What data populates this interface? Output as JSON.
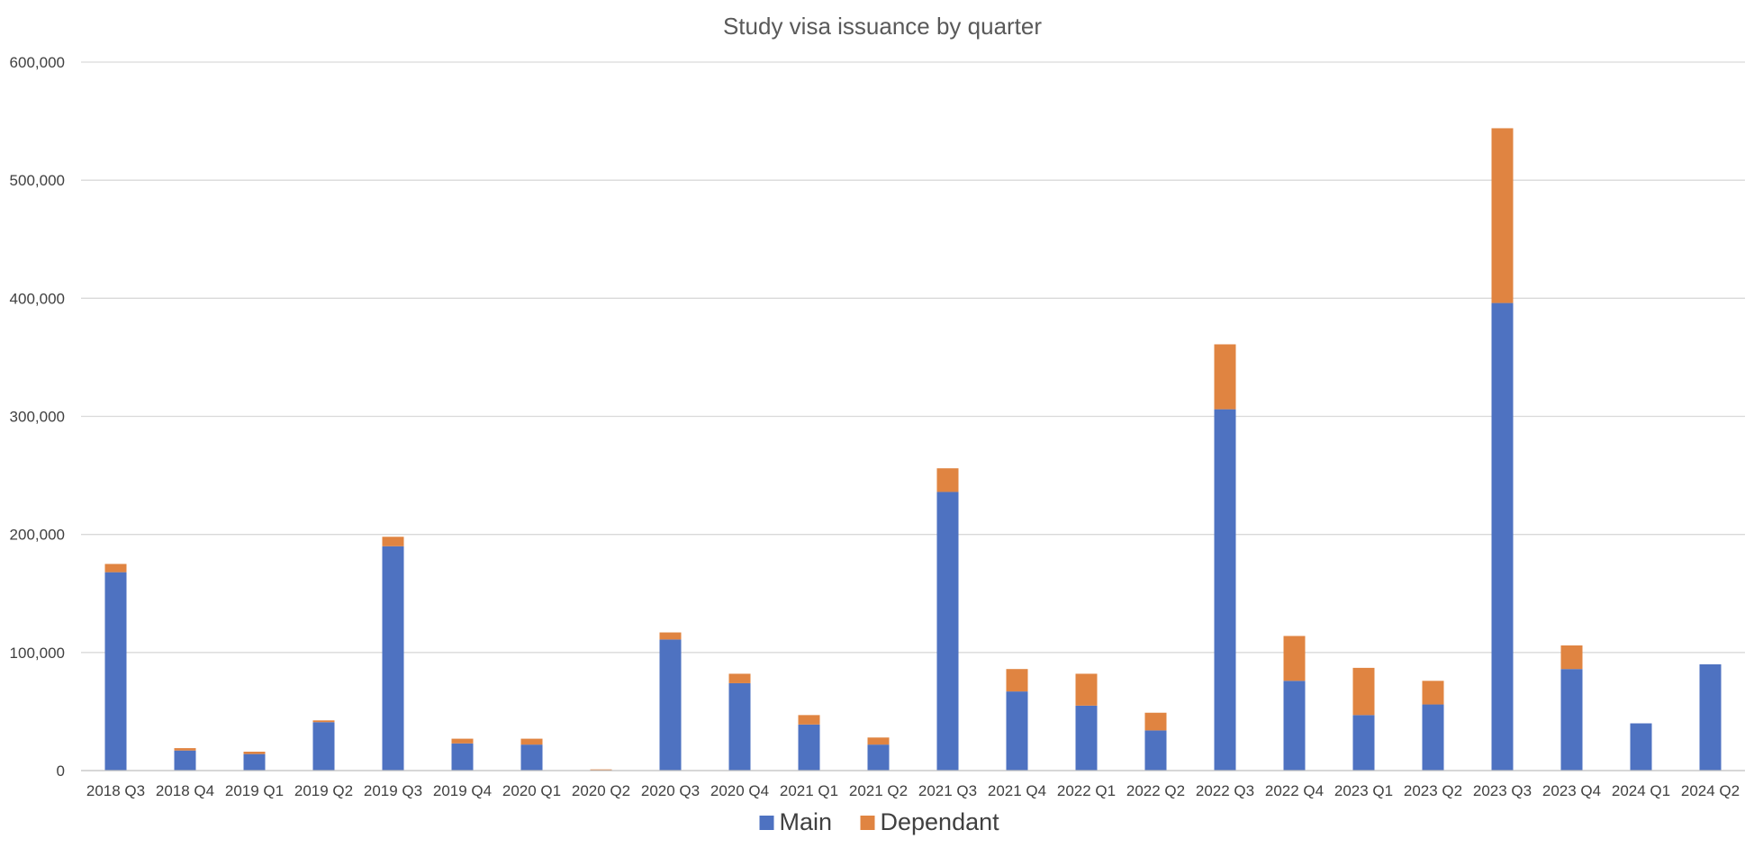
{
  "chart_data": {
    "type": "bar",
    "stacked": true,
    "title": "Study visa issuance by quarter",
    "xlabel": "",
    "ylabel": "",
    "ylim": [
      0,
      600000
    ],
    "yticks": [
      "0",
      "100,000",
      "200,000",
      "300,000",
      "400,000",
      "500,000",
      "600,000"
    ],
    "grid": true,
    "legend_position": "bottom",
    "categories": [
      "2018 Q3",
      "2018 Q4",
      "2019 Q1",
      "2019 Q2",
      "2019 Q3",
      "2019 Q4",
      "2020 Q1",
      "2020 Q2",
      "2020 Q3",
      "2020 Q4",
      "2021 Q1",
      "2021 Q2",
      "2021 Q3",
      "2021 Q4",
      "2022 Q1",
      "2022 Q2",
      "2022 Q3",
      "2022 Q4",
      "2023 Q1",
      "2023 Q2",
      "2023 Q3",
      "2023 Q4",
      "2024 Q1",
      "2024 Q2"
    ],
    "series": [
      {
        "name": "Main",
        "color": "#4e72c1",
        "values": [
          168000,
          17000,
          14000,
          41000,
          190000,
          23000,
          22000,
          500,
          111000,
          74000,
          39000,
          22000,
          236000,
          67000,
          55000,
          34000,
          306000,
          76000,
          47000,
          56000,
          396000,
          86000,
          40000,
          90000
        ]
      },
      {
        "name": "Dependant",
        "color": "#e08441",
        "values": [
          7000,
          2000,
          2000,
          1500,
          8000,
          4000,
          5000,
          500,
          6000,
          8000,
          8000,
          6000,
          20000,
          19000,
          27000,
          15000,
          55000,
          38000,
          40000,
          20000,
          148000,
          20000,
          0,
          0
        ]
      }
    ]
  }
}
